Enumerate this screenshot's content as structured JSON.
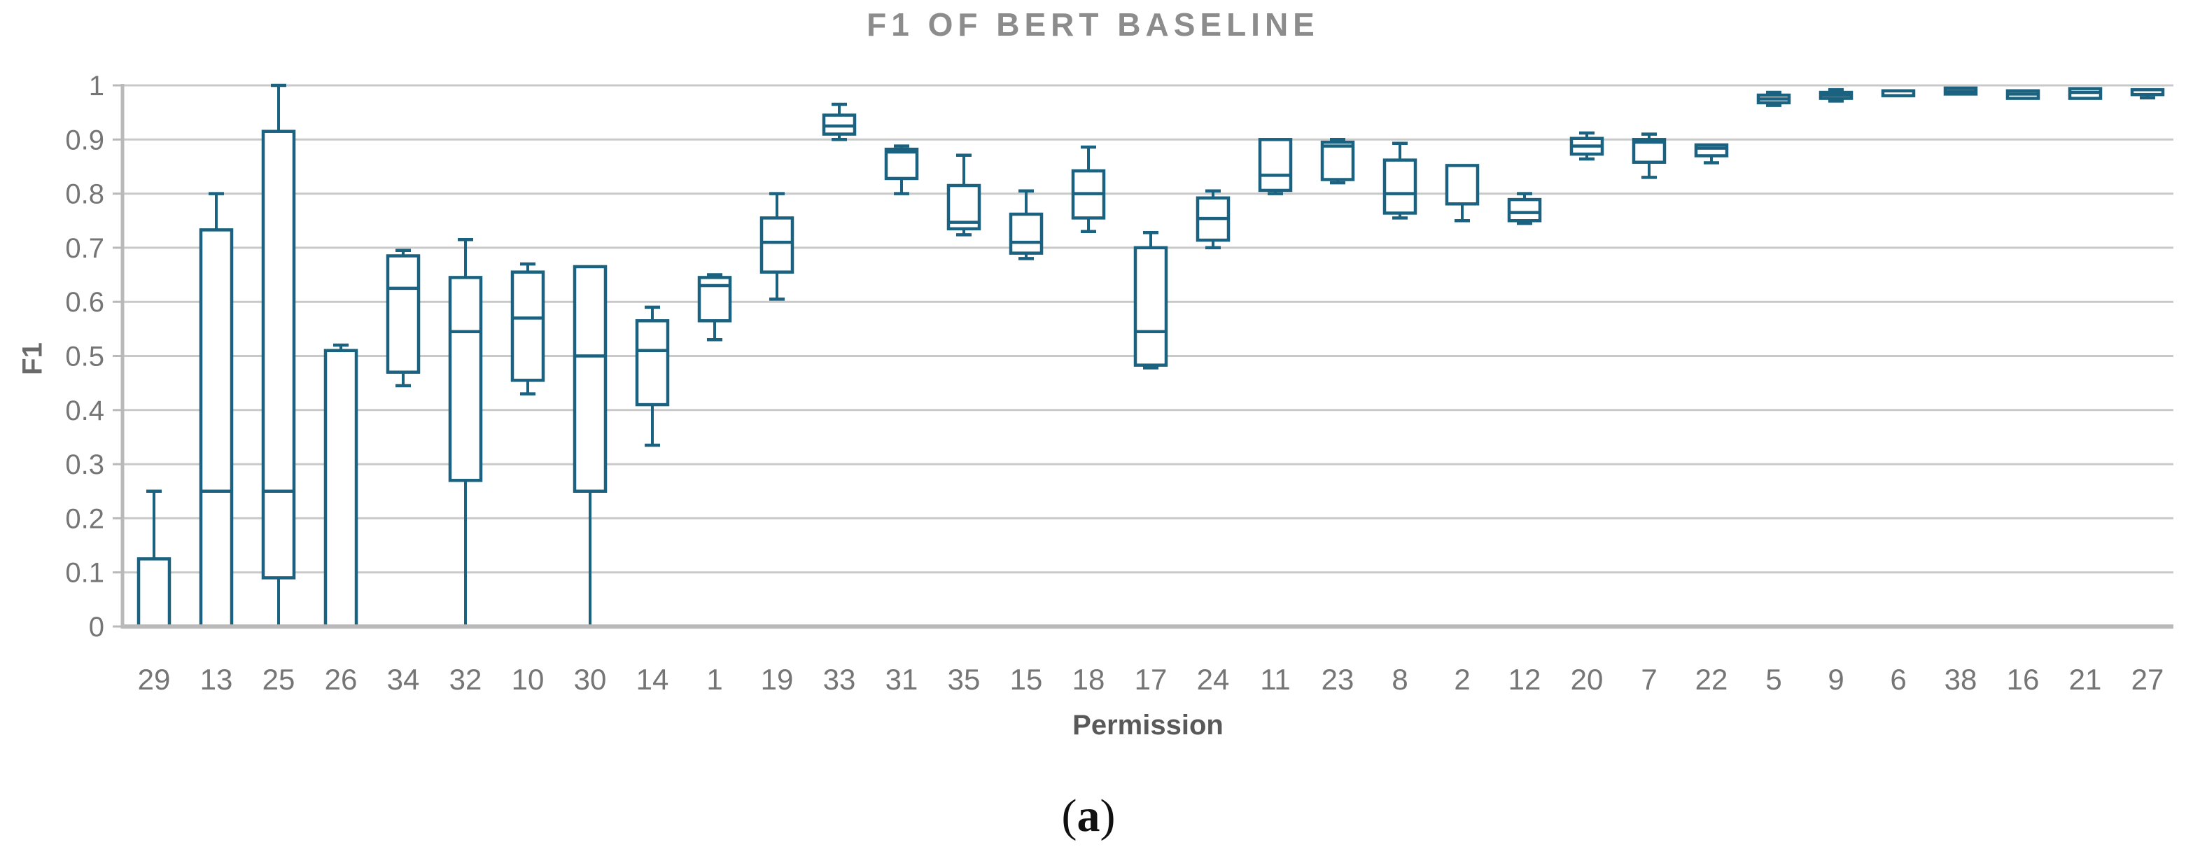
{
  "chart_data": {
    "type": "box",
    "title": "F1 OF BERT BASELINE",
    "xlabel": "Permission",
    "ylabel": "F1",
    "ylim": [
      0,
      1
    ],
    "grid": true,
    "legend": "none",
    "y_ticks": [
      {
        "label": "1",
        "value": 1.0
      },
      {
        "label": "0.9",
        "value": 0.9
      },
      {
        "label": "0.8",
        "value": 0.8
      },
      {
        "label": "0.7",
        "value": 0.7
      },
      {
        "label": "0.6",
        "value": 0.6
      },
      {
        "label": "0.5",
        "value": 0.5
      },
      {
        "label": "0.4",
        "value": 0.4
      },
      {
        "label": "0.3",
        "value": 0.3
      },
      {
        "label": "0.2",
        "value": 0.2
      },
      {
        "label": "0.1",
        "value": 0.1
      },
      {
        "label": "0",
        "value": 0.0
      }
    ],
    "categories": [
      "29",
      "13",
      "25",
      "26",
      "34",
      "32",
      "10",
      "30",
      "14",
      "1",
      "19",
      "33",
      "31",
      "35",
      "15",
      "18",
      "17",
      "24",
      "11",
      "23",
      "8",
      "2",
      "12",
      "20",
      "7",
      "22",
      "5",
      "9",
      "6",
      "38",
      "16",
      "21",
      "27"
    ],
    "series": [
      {
        "name": "F1",
        "boxes": [
          {
            "category": "29",
            "min": 0.0,
            "q1": 0.0,
            "median": 0.0,
            "q3": 0.125,
            "max": 0.25
          },
          {
            "category": "13",
            "min": 0.0,
            "q1": 0.0,
            "median": 0.25,
            "q3": 0.733,
            "max": 0.8
          },
          {
            "category": "25",
            "min": 0.0,
            "q1": 0.09,
            "median": 0.25,
            "q3": 0.915,
            "max": 1.0
          },
          {
            "category": "26",
            "min": 0.0,
            "q1": 0.0,
            "median": 0.0,
            "q3": 0.51,
            "max": 0.52
          },
          {
            "category": "34",
            "min": 0.445,
            "q1": 0.47,
            "median": 0.625,
            "q3": 0.685,
            "max": 0.695
          },
          {
            "category": "32",
            "min": 0.0,
            "q1": 0.27,
            "median": 0.545,
            "q3": 0.645,
            "max": 0.715
          },
          {
            "category": "10",
            "min": 0.43,
            "q1": 0.455,
            "median": 0.57,
            "q3": 0.655,
            "max": 0.67
          },
          {
            "category": "30",
            "min": 0.0,
            "q1": 0.25,
            "median": 0.5,
            "q3": 0.665,
            "max": 0.665
          },
          {
            "category": "14",
            "min": 0.335,
            "q1": 0.41,
            "median": 0.51,
            "q3": 0.565,
            "max": 0.59
          },
          {
            "category": "1",
            "min": 0.53,
            "q1": 0.565,
            "median": 0.63,
            "q3": 0.645,
            "max": 0.65
          },
          {
            "category": "19",
            "min": 0.605,
            "q1": 0.655,
            "median": 0.71,
            "q3": 0.755,
            "max": 0.8
          },
          {
            "category": "33",
            "min": 0.9,
            "q1": 0.91,
            "median": 0.925,
            "q3": 0.945,
            "max": 0.965
          },
          {
            "category": "31",
            "min": 0.8,
            "q1": 0.828,
            "median": 0.877,
            "q3": 0.882,
            "max": 0.888
          },
          {
            "category": "35",
            "min": 0.724,
            "q1": 0.735,
            "median": 0.747,
            "q3": 0.815,
            "max": 0.871
          },
          {
            "category": "15",
            "min": 0.68,
            "q1": 0.69,
            "median": 0.71,
            "q3": 0.762,
            "max": 0.805
          },
          {
            "category": "18",
            "min": 0.73,
            "q1": 0.755,
            "median": 0.8,
            "q3": 0.842,
            "max": 0.886
          },
          {
            "category": "17",
            "min": 0.478,
            "q1": 0.483,
            "median": 0.545,
            "q3": 0.7,
            "max": 0.728
          },
          {
            "category": "24",
            "min": 0.7,
            "q1": 0.714,
            "median": 0.754,
            "q3": 0.792,
            "max": 0.805
          },
          {
            "category": "11",
            "min": 0.8,
            "q1": 0.806,
            "median": 0.834,
            "q3": 0.9,
            "max": 0.9
          },
          {
            "category": "23",
            "min": 0.82,
            "q1": 0.826,
            "median": 0.888,
            "q3": 0.895,
            "max": 0.9
          },
          {
            "category": "8",
            "min": 0.755,
            "q1": 0.764,
            "median": 0.8,
            "q3": 0.862,
            "max": 0.893
          },
          {
            "category": "2",
            "min": 0.75,
            "q1": 0.781,
            "median": 0.781,
            "q3": 0.852,
            "max": 0.852
          },
          {
            "category": "12",
            "min": 0.745,
            "q1": 0.75,
            "median": 0.765,
            "q3": 0.789,
            "max": 0.8
          },
          {
            "category": "20",
            "min": 0.864,
            "q1": 0.873,
            "median": 0.888,
            "q3": 0.902,
            "max": 0.912
          },
          {
            "category": "7",
            "min": 0.83,
            "q1": 0.858,
            "median": 0.895,
            "q3": 0.9,
            "max": 0.91
          },
          {
            "category": "22",
            "min": 0.857,
            "q1": 0.87,
            "median": 0.884,
            "q3": 0.89,
            "max": 0.89
          },
          {
            "category": "5",
            "min": 0.963,
            "q1": 0.968,
            "median": 0.975,
            "q3": 0.982,
            "max": 0.987
          },
          {
            "category": "9",
            "min": 0.971,
            "q1": 0.976,
            "median": 0.982,
            "q3": 0.987,
            "max": 0.992
          },
          {
            "category": "6",
            "min": 0.978,
            "q1": 0.981,
            "median": 0.986,
            "q3": 0.99,
            "max": 0.992
          },
          {
            "category": "38",
            "min": 0.982,
            "q1": 0.984,
            "median": 0.989,
            "q3": 0.995,
            "max": 0.995
          },
          {
            "category": "16",
            "min": 0.972,
            "q1": 0.976,
            "median": 0.984,
            "q3": 0.99,
            "max": 0.99
          },
          {
            "category": "21",
            "min": 0.973,
            "q1": 0.976,
            "median": 0.987,
            "q3": 0.994,
            "max": 0.995
          },
          {
            "category": "27",
            "min": 0.977,
            "q1": 0.983,
            "median": 0.988,
            "q3": 0.992,
            "max": 0.993
          }
        ]
      }
    ],
    "colors": {
      "box_stroke": "#1a627f",
      "box_fill": "#ffffff",
      "gridline": "#c9c9c9",
      "axis": "#b9b9b9",
      "tick_text": "#757575",
      "title_text": "#8c8c8c",
      "axis_label_text": "#595959",
      "ylabel_text": "#6a6a6a"
    }
  },
  "caption": {
    "prefix": "(",
    "letter": "a",
    "suffix": ")"
  }
}
